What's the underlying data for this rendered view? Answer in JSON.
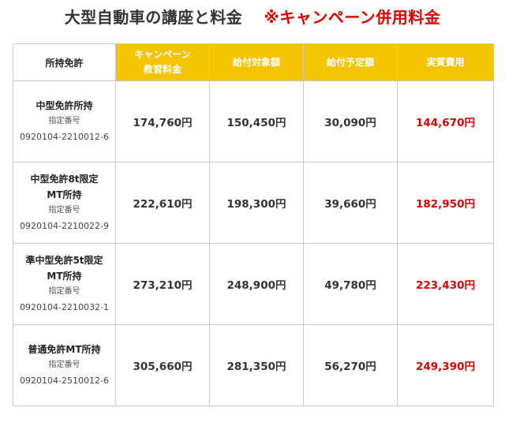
{
  "title": "大型自動車の講座と料金",
  "campaign_note": "※キャンペーン併用料金",
  "headers": {
    "license": "所持免許",
    "campaign_line1": "キャンペーン",
    "campaign_line2": "教習料金",
    "subsidy_target": "給付対象額",
    "subsidy_planned": "給付予定額",
    "actual_cost": "実質費用"
  },
  "designation_label": "指定番号",
  "rows": [
    {
      "license_line1": "中型免許所持",
      "license_line2": "",
      "designation": "0920104-2210012-6",
      "campaign_fee": "174,760円",
      "subsidy_target": "150,450円",
      "subsidy_planned": "30,090円",
      "actual_cost": "144,670円"
    },
    {
      "license_line1": "中型免許8t限定",
      "license_line2": "MT所持",
      "designation": "0920104-2210022-9",
      "campaign_fee": "222,610円",
      "subsidy_target": "198,300円",
      "subsidy_planned": "39,660円",
      "actual_cost": "182,950円"
    },
    {
      "license_line1": "準中型免許5t限定",
      "license_line2": "MT所持",
      "designation": "0920104-2210032-1",
      "campaign_fee": "273,210円",
      "subsidy_target": "248,900円",
      "subsidy_planned": "49,780円",
      "actual_cost": "223,430円"
    },
    {
      "license_line1": "普通免許MT所持",
      "license_line2": "",
      "designation": "0920104-2510012-6",
      "campaign_fee": "305,660円",
      "subsidy_target": "281,350円",
      "subsidy_planned": "56,270円",
      "actual_cost": "249,390円"
    }
  ],
  "colors": {
    "header_gold": "#f5c400",
    "highlight_red": "#e00000",
    "border": "#c8c8c8"
  }
}
